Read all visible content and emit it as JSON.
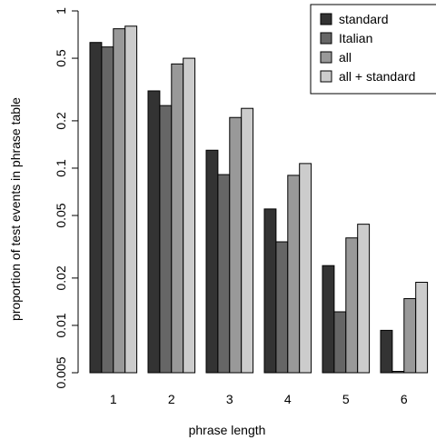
{
  "chart_data": {
    "type": "bar",
    "title": "",
    "xlabel": "phrase length",
    "ylabel": "proportion of test events in phrase table",
    "y_scale": "log",
    "ylim": [
      0.005,
      1
    ],
    "y_ticks": [
      {
        "value": 0.005,
        "label": "0.005"
      },
      {
        "value": 0.01,
        "label": "0.01"
      },
      {
        "value": 0.02,
        "label": "0.02"
      },
      {
        "value": 0.05,
        "label": "0.05"
      },
      {
        "value": 0.1,
        "label": "0.1"
      },
      {
        "value": 0.2,
        "label": "0.2"
      },
      {
        "value": 0.5,
        "label": "0.5"
      },
      {
        "value": 1,
        "label": "1"
      }
    ],
    "categories": [
      "1",
      "2",
      "3",
      "4",
      "5",
      "6"
    ],
    "series": [
      {
        "name": "standard",
        "color": "#333333",
        "values": [
          0.63,
          0.31,
          0.13,
          0.055,
          0.024,
          0.0093
        ]
      },
      {
        "name": "Italian",
        "color": "#666666",
        "values": [
          0.59,
          0.25,
          0.091,
          0.034,
          0.0122,
          0.0051
        ]
      },
      {
        "name": "all",
        "color": "#999999",
        "values": [
          0.77,
          0.46,
          0.21,
          0.09,
          0.036,
          0.0148
        ]
      },
      {
        "name": "all + standard",
        "color": "#cccccc",
        "values": [
          0.8,
          0.5,
          0.24,
          0.107,
          0.044,
          0.0188
        ]
      }
    ],
    "legend_position": "top-right",
    "grid": false
  }
}
